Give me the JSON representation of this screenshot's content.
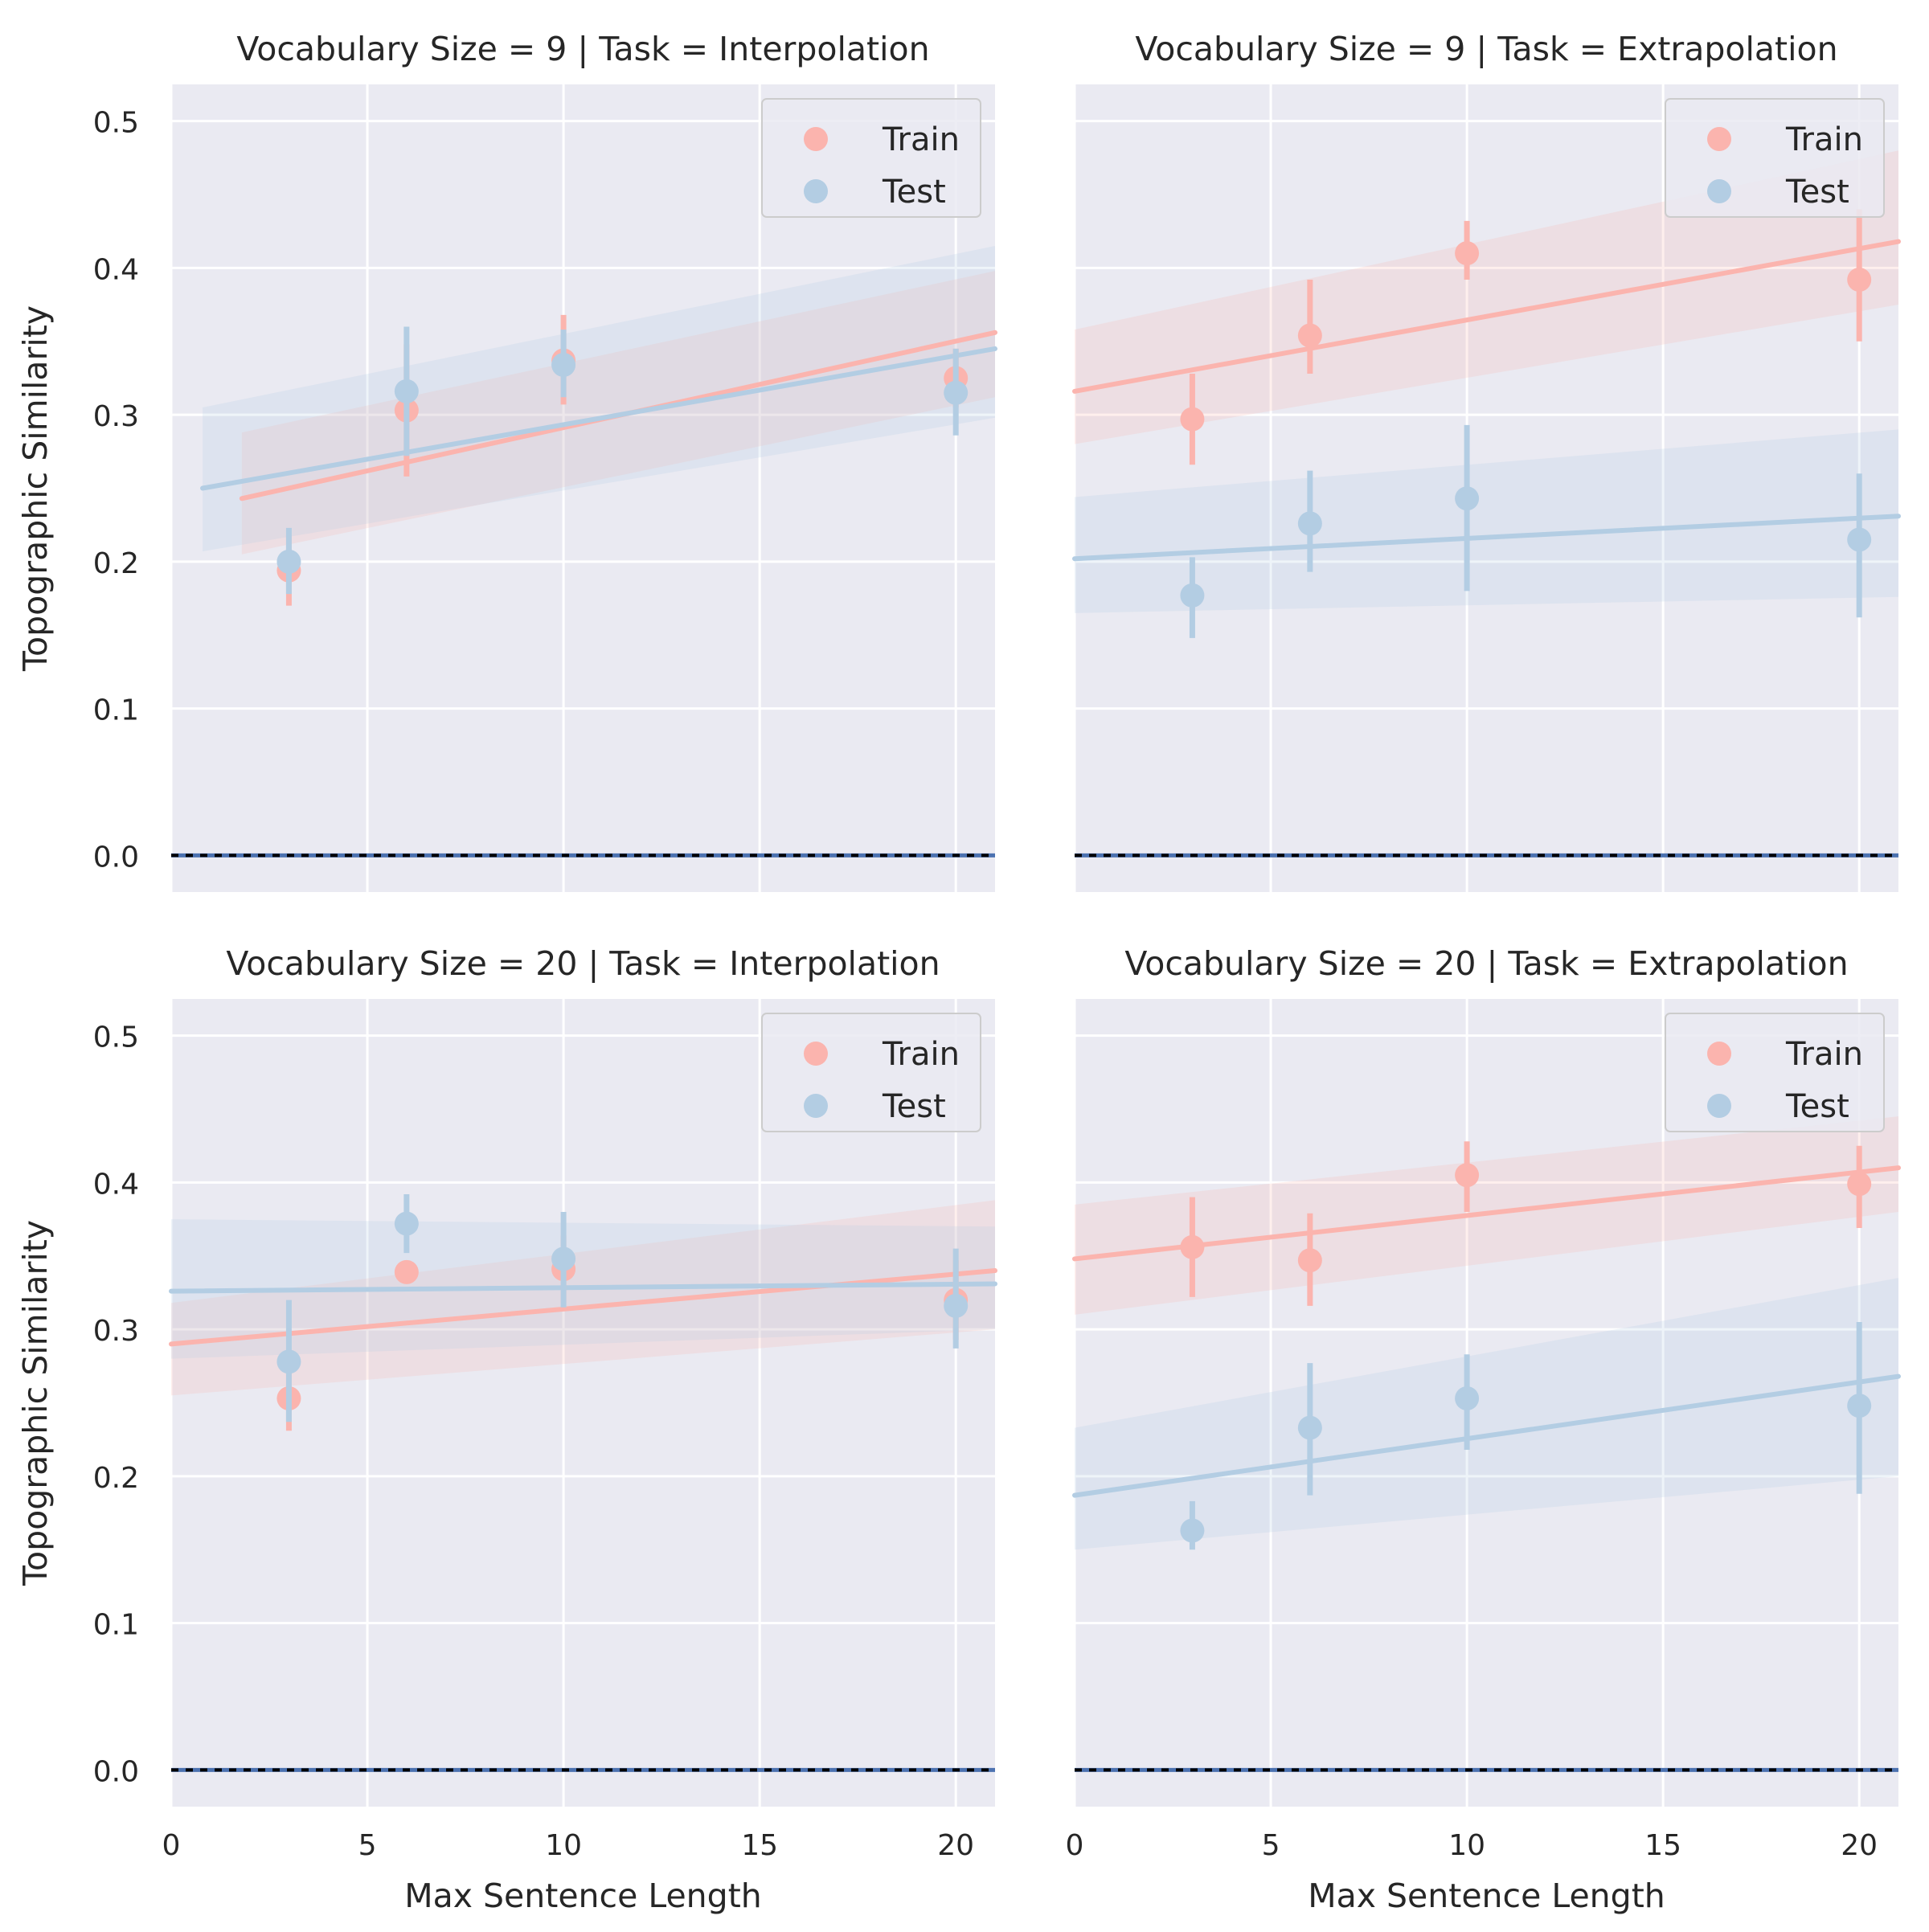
{
  "colors": {
    "train": "#fbb4ae",
    "test": "#b3cde3",
    "panel_bg": "#eaeaf2",
    "grid": "#ffffff",
    "baseline": "#4c72b0",
    "baseline_dash": "#000000",
    "text": "#262626"
  },
  "legend": {
    "train_label": "Train",
    "test_label": "Test"
  },
  "chart_data": [
    {
      "type": "scatter",
      "title": "Vocabulary Size = 9 | Task = Interpolation",
      "xlabel": "",
      "ylabel": "Topographic Similarity",
      "xlim": [
        0,
        21
      ],
      "ylim": [
        -0.025,
        0.525
      ],
      "xticks": [
        0,
        5,
        10,
        15,
        20
      ],
      "yticks": [
        0.0,
        0.1,
        0.2,
        0.3,
        0.4,
        0.5
      ],
      "show_xticklabels": false,
      "show_yticklabels": true,
      "baseline": 0.0,
      "series": [
        {
          "name": "Train",
          "x": [
            3,
            6,
            10,
            20
          ],
          "y": [
            0.194,
            0.303,
            0.337,
            0.325
          ],
          "err_low": [
            0.17,
            0.258,
            0.307,
            0.305
          ],
          "err_high": [
            0.218,
            0.348,
            0.368,
            0.345
          ],
          "fit": {
            "x0": 1.8,
            "y0": 0.243,
            "x1": 21,
            "y1": 0.356
          },
          "band": {
            "low0": 0.205,
            "high0": 0.288,
            "low1": 0.312,
            "high1": 0.398
          }
        },
        {
          "name": "Test",
          "x": [
            3,
            6,
            10,
            20
          ],
          "y": [
            0.2,
            0.316,
            0.334,
            0.315
          ],
          "err_low": [
            0.178,
            0.272,
            0.312,
            0.286
          ],
          "err_high": [
            0.223,
            0.36,
            0.358,
            0.345
          ],
          "fit": {
            "x0": 0.8,
            "y0": 0.25,
            "x1": 21,
            "y1": 0.345
          },
          "band": {
            "low0": 0.207,
            "high0": 0.305,
            "low1": 0.298,
            "high1": 0.415
          }
        }
      ]
    },
    {
      "type": "scatter",
      "title": "Vocabulary Size = 9 | Task = Extrapolation",
      "xlabel": "",
      "ylabel": "",
      "xlim": [
        0,
        21
      ],
      "ylim": [
        -0.025,
        0.525
      ],
      "xticks": [
        0,
        5,
        10,
        15,
        20
      ],
      "yticks": [
        0.0,
        0.1,
        0.2,
        0.3,
        0.4,
        0.5
      ],
      "show_xticklabels": false,
      "show_yticklabels": false,
      "baseline": 0.0,
      "series": [
        {
          "name": "Train",
          "x": [
            3,
            6,
            10,
            20
          ],
          "y": [
            0.297,
            0.354,
            0.41,
            0.392
          ],
          "err_low": [
            0.266,
            0.328,
            0.392,
            0.35
          ],
          "err_high": [
            0.328,
            0.392,
            0.432,
            0.44
          ],
          "fit": {
            "x0": 0,
            "y0": 0.316,
            "x1": 21,
            "y1": 0.418
          },
          "band": {
            "low0": 0.28,
            "high0": 0.358,
            "low1": 0.375,
            "high1": 0.48
          }
        },
        {
          "name": "Test",
          "x": [
            3,
            6,
            10,
            20
          ],
          "y": [
            0.177,
            0.226,
            0.243,
            0.215
          ],
          "err_low": [
            0.148,
            0.193,
            0.18,
            0.162
          ],
          "err_high": [
            0.203,
            0.262,
            0.293,
            0.26
          ],
          "fit": {
            "x0": 0,
            "y0": 0.202,
            "x1": 21,
            "y1": 0.231
          },
          "band": {
            "low0": 0.165,
            "high0": 0.244,
            "low1": 0.176,
            "high1": 0.29
          }
        }
      ]
    },
    {
      "type": "scatter",
      "title": "Vocabulary Size = 20 | Task = Interpolation",
      "xlabel": "Max Sentence Length",
      "ylabel": "Topographic Similarity",
      "xlim": [
        0,
        21
      ],
      "ylim": [
        -0.025,
        0.525
      ],
      "xticks": [
        0,
        5,
        10,
        15,
        20
      ],
      "yticks": [
        0.0,
        0.1,
        0.2,
        0.3,
        0.4,
        0.5
      ],
      "show_xticklabels": true,
      "show_yticklabels": true,
      "baseline": 0.0,
      "series": [
        {
          "name": "Train",
          "x": [
            3,
            6,
            10,
            20
          ],
          "y": [
            0.253,
            0.339,
            0.341,
            0.32
          ],
          "err_low": [
            0.231,
            0.334,
            0.318,
            0.293
          ],
          "err_high": [
            0.275,
            0.344,
            0.364,
            0.347
          ],
          "fit": {
            "x0": 0,
            "y0": 0.29,
            "x1": 21,
            "y1": 0.34
          },
          "band": {
            "low0": 0.255,
            "high0": 0.318,
            "low1": 0.3,
            "high1": 0.388
          }
        },
        {
          "name": "Test",
          "x": [
            3,
            6,
            10,
            20
          ],
          "y": [
            0.278,
            0.372,
            0.348,
            0.316
          ],
          "err_low": [
            0.237,
            0.352,
            0.315,
            0.287
          ],
          "err_high": [
            0.32,
            0.392,
            0.38,
            0.355
          ],
          "fit": {
            "x0": 0,
            "y0": 0.326,
            "x1": 21,
            "y1": 0.331
          },
          "band": {
            "low0": 0.28,
            "high0": 0.375,
            "low1": 0.3,
            "high1": 0.37
          }
        }
      ]
    },
    {
      "type": "scatter",
      "title": "Vocabulary Size = 20 | Task = Extrapolation",
      "xlabel": "Max Sentence Length",
      "ylabel": "",
      "xlim": [
        0,
        21
      ],
      "ylim": [
        -0.025,
        0.525
      ],
      "xticks": [
        0,
        5,
        10,
        15,
        20
      ],
      "yticks": [
        0.0,
        0.1,
        0.2,
        0.3,
        0.4,
        0.5
      ],
      "show_xticklabels": true,
      "show_yticklabels": false,
      "baseline": 0.0,
      "series": [
        {
          "name": "Train",
          "x": [
            3,
            6,
            10,
            20
          ],
          "y": [
            0.356,
            0.347,
            0.405,
            0.399
          ],
          "err_low": [
            0.322,
            0.316,
            0.38,
            0.369
          ],
          "err_high": [
            0.39,
            0.379,
            0.428,
            0.425
          ],
          "fit": {
            "x0": 0,
            "y0": 0.348,
            "x1": 21,
            "y1": 0.41
          },
          "band": {
            "low0": 0.31,
            "high0": 0.385,
            "low1": 0.38,
            "high1": 0.445
          }
        },
        {
          "name": "Test",
          "x": [
            3,
            6,
            10,
            20
          ],
          "y": [
            0.163,
            0.233,
            0.253,
            0.248
          ],
          "err_low": [
            0.15,
            0.187,
            0.218,
            0.188
          ],
          "err_high": [
            0.183,
            0.277,
            0.283,
            0.305
          ],
          "fit": {
            "x0": 0,
            "y0": 0.187,
            "x1": 21,
            "y1": 0.268
          },
          "band": {
            "low0": 0.15,
            "high0": 0.233,
            "low1": 0.2,
            "high1": 0.335
          }
        }
      ]
    }
  ]
}
